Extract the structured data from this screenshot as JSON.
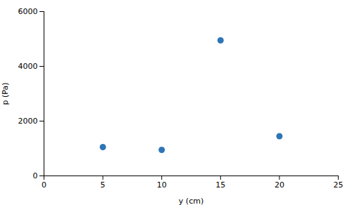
{
  "chart_data": {
    "type": "scatter",
    "x": [
      5,
      10,
      15,
      20
    ],
    "values": [
      1050,
      950,
      4950,
      1450
    ],
    "color": "#2e75b6",
    "marker": "circle",
    "xlim": [
      0,
      25
    ],
    "ylim": [
      0,
      6000
    ],
    "xticks": [
      0,
      5,
      10,
      15,
      20,
      25
    ],
    "yticks": [
      0,
      2000,
      4000,
      6000
    ],
    "xlabel": "y (cm)",
    "ylabel": "p (Pa)"
  }
}
